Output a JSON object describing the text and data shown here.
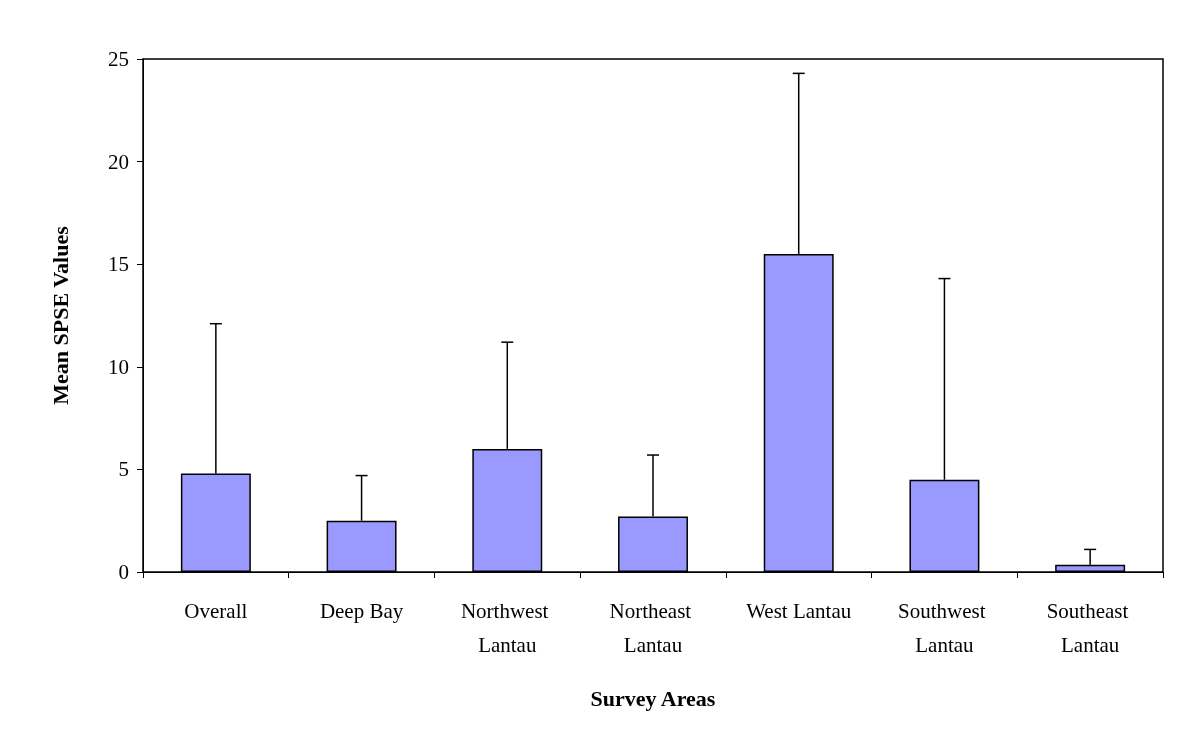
{
  "chart_data": {
    "type": "bar",
    "xlabel": "Survey Areas",
    "ylabel": "Mean SPSE Values",
    "categories": [
      "Overall",
      "Deep Bay",
      "Northwest Lantau",
      "Northeast Lantau",
      "West Lantau",
      "Southwest Lantau",
      "Southeast Lantau"
    ],
    "values": [
      4.8,
      2.5,
      6.0,
      2.7,
      15.5,
      4.5,
      0.35
    ],
    "errors": [
      [
        4.8,
        12.1
      ],
      [
        2.5,
        4.7
      ],
      [
        6.0,
        11.2
      ],
      [
        2.7,
        5.7
      ],
      [
        15.5,
        24.3
      ],
      [
        4.5,
        14.3
      ],
      [
        0.35,
        1.1
      ]
    ],
    "color": "#9999ff",
    "ylim": [
      0,
      25
    ],
    "yticks": [
      0,
      5,
      10,
      15,
      20,
      25
    ],
    "grid": false
  }
}
